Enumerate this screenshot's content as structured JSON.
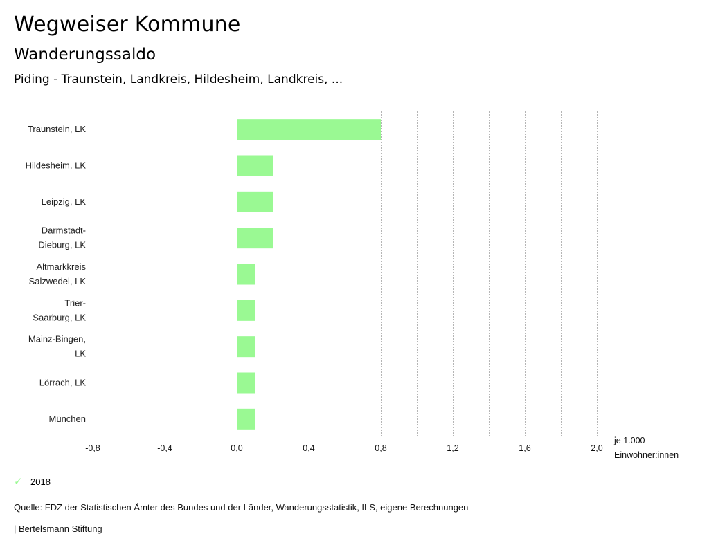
{
  "header": {
    "title": "Wegweiser Kommune",
    "subtitle": "Wanderungssaldo",
    "selection": "Piding - Traunstein, Landkreis, Hildesheim, Landkreis, ..."
  },
  "chart_data": {
    "type": "bar",
    "orientation": "horizontal",
    "title": "Wanderungssaldo",
    "categories": [
      [
        "Traunstein, LK"
      ],
      [
        "Hildesheim, LK"
      ],
      [
        "Leipzig, LK"
      ],
      [
        "Darmstadt-",
        "Dieburg, LK"
      ],
      [
        "Altmarkkreis",
        "Salzwedel, LK"
      ],
      [
        "Trier-",
        "Saarburg, LK"
      ],
      [
        "Mainz-Bingen,",
        "LK"
      ],
      [
        "Lörrach, LK"
      ],
      [
        "München"
      ]
    ],
    "series": [
      {
        "name": "2018",
        "color": "#9af993",
        "values": [
          0.8,
          0.2,
          0.2,
          0.2,
          0.1,
          0.1,
          0.1,
          0.1,
          0.1
        ]
      }
    ],
    "xlim": [
      -0.8,
      2.0
    ],
    "xticks": [
      -0.8,
      -0.4,
      0.0,
      0.4,
      0.8,
      1.2,
      1.6,
      2.0
    ],
    "xtick_labels": [
      "-0,8",
      "-0,4",
      "0,0",
      "0,4",
      "0,8",
      "1,2",
      "1,6",
      "2,0"
    ],
    "grid_step": 0.2,
    "grid": true,
    "xlabel": [
      "je 1.000",
      "Einwohner:innen"
    ],
    "ylabel": "",
    "legend_position": "bottom-left"
  },
  "legend": {
    "items": [
      {
        "label": "2018",
        "icon": "check-icon",
        "color": "#9af993"
      }
    ]
  },
  "footer": {
    "source": "Quelle: FDZ der Statistischen Ämter des Bundes und der Länder, Wanderungsstatistik, ILS, eigene Berechnungen",
    "credit": "| Bertelsmann Stiftung"
  }
}
